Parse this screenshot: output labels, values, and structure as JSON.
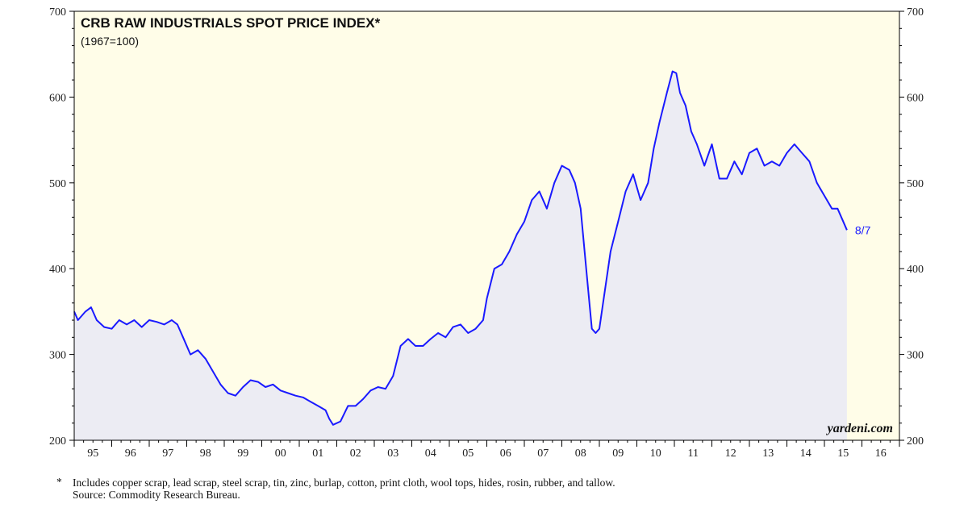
{
  "colors": {
    "plot_bg": "#fffde8",
    "area_fill": "#ececf3",
    "line": "#1a1aff",
    "axis": "#000000"
  },
  "chart_data": {
    "type": "line",
    "title": "CRB RAW INDUSTRIALS SPOT PRICE INDEX*",
    "subtitle": "(1967=100)",
    "xlabel": "",
    "ylabel": "",
    "ylim": [
      200,
      700
    ],
    "y_ticks": [
      200,
      300,
      400,
      500,
      600,
      700
    ],
    "xlim": [
      1995,
      2017
    ],
    "x_ticks": [
      "95",
      "96",
      "97",
      "98",
      "99",
      "00",
      "01",
      "02",
      "03",
      "04",
      "05",
      "06",
      "07",
      "08",
      "09",
      "10",
      "11",
      "12",
      "13",
      "14",
      "15",
      "16"
    ],
    "end_label": "8/7",
    "watermark": "yardeni.com",
    "series": [
      {
        "name": "CRB Raw Industrials Spot Price Index",
        "x": [
          1995.0,
          1995.1,
          1995.3,
          1995.45,
          1995.6,
          1995.8,
          1996.0,
          1996.2,
          1996.4,
          1996.6,
          1996.8,
          1997.0,
          1997.2,
          1997.4,
          1997.6,
          1997.75,
          1997.9,
          1998.1,
          1998.3,
          1998.5,
          1998.7,
          1998.9,
          1999.1,
          1999.3,
          1999.5,
          1999.7,
          1999.9,
          2000.1,
          2000.3,
          2000.5,
          2000.7,
          2000.9,
          2001.1,
          2001.3,
          2001.5,
          2001.7,
          2001.8,
          2001.9,
          2002.1,
          2002.3,
          2002.5,
          2002.7,
          2002.9,
          2003.1,
          2003.3,
          2003.5,
          2003.7,
          2003.9,
          2004.1,
          2004.3,
          2004.5,
          2004.7,
          2004.9,
          2005.1,
          2005.3,
          2005.5,
          2005.7,
          2005.9,
          2006.0,
          2006.2,
          2006.4,
          2006.6,
          2006.8,
          2007.0,
          2007.2,
          2007.4,
          2007.6,
          2007.8,
          2008.0,
          2008.2,
          2008.35,
          2008.5,
          2008.65,
          2008.8,
          2008.9,
          2009.0,
          2009.1,
          2009.3,
          2009.5,
          2009.7,
          2009.9,
          2010.1,
          2010.3,
          2010.45,
          2010.6,
          2010.8,
          2010.95,
          2011.05,
          2011.15,
          2011.3,
          2011.45,
          2011.6,
          2011.8,
          2012.0,
          2012.2,
          2012.4,
          2012.6,
          2012.8,
          2013.0,
          2013.2,
          2013.4,
          2013.6,
          2013.8,
          2014.0,
          2014.2,
          2014.4,
          2014.6,
          2014.8,
          2015.0,
          2015.2,
          2015.35,
          2015.5,
          2015.6
        ],
        "values": [
          350,
          340,
          350,
          355,
          340,
          332,
          330,
          340,
          335,
          340,
          332,
          340,
          338,
          335,
          340,
          335,
          320,
          300,
          305,
          295,
          280,
          265,
          255,
          252,
          262,
          270,
          268,
          262,
          265,
          258,
          255,
          252,
          250,
          245,
          240,
          235,
          225,
          218,
          222,
          240,
          240,
          248,
          258,
          262,
          260,
          275,
          310,
          318,
          310,
          310,
          318,
          325,
          320,
          332,
          335,
          325,
          330,
          340,
          365,
          400,
          405,
          420,
          440,
          455,
          480,
          490,
          470,
          500,
          520,
          515,
          500,
          470,
          400,
          330,
          325,
          330,
          360,
          420,
          455,
          490,
          510,
          480,
          500,
          540,
          570,
          605,
          630,
          628,
          605,
          590,
          560,
          545,
          520,
          545,
          505,
          505,
          525,
          510,
          535,
          540,
          520,
          525,
          520,
          535,
          545,
          535,
          525,
          500,
          485,
          470,
          470,
          455,
          445
        ]
      }
    ]
  },
  "footnote": {
    "marker": "*",
    "text": "Includes copper scrap, lead scrap, steel scrap, tin, zinc, burlap, cotton, print cloth, wool tops, hides, rosin, rubber, and tallow.",
    "source": "Source: Commodity Research Bureau."
  }
}
